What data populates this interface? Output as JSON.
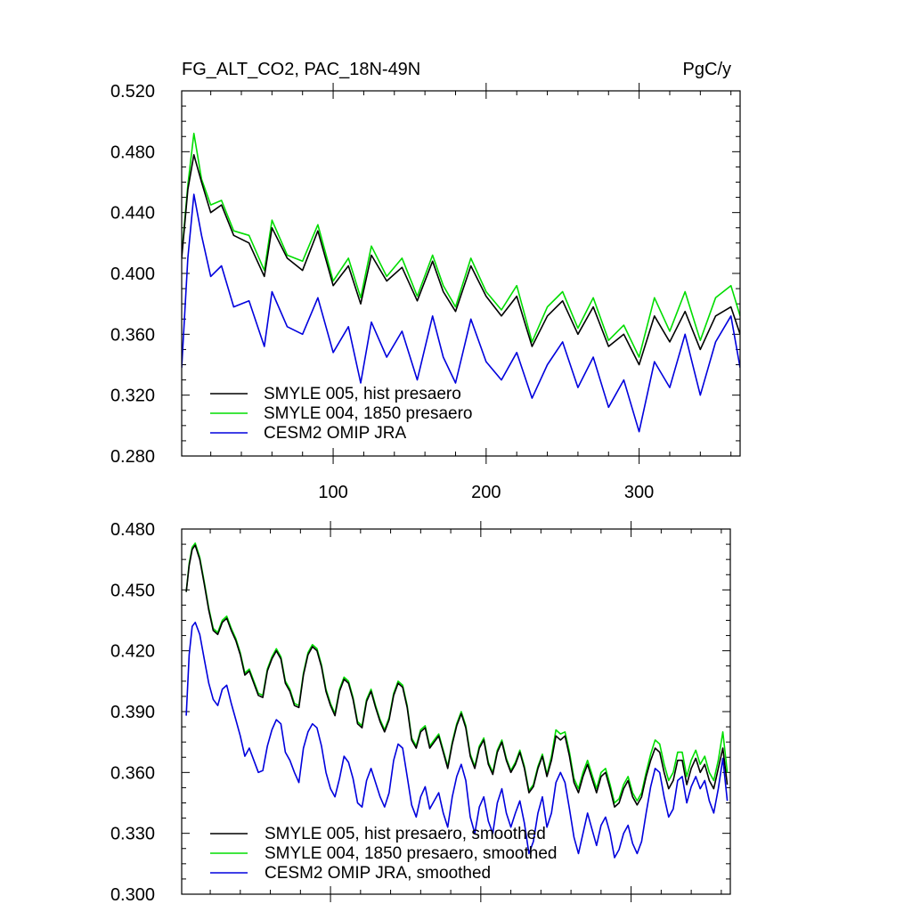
{
  "chart_data": [
    {
      "type": "line",
      "title_left": "FG_ALT_CO2, PAC_18N-49N",
      "title_right": "PgC/y",
      "xlim": [
        1,
        366
      ],
      "ylim": [
        0.28,
        0.52
      ],
      "x_ticks": [
        100,
        200,
        300
      ],
      "x_tick_labels": [
        "100",
        "200",
        "300"
      ],
      "y_ticks": [
        0.28,
        0.32,
        0.36,
        0.4,
        0.44,
        0.48,
        0.52
      ],
      "y_tick_labels": [
        "0.280",
        "0.320",
        "0.360",
        "0.400",
        "0.440",
        "0.480",
        "0.520"
      ],
      "legend": "bottom-left",
      "series": [
        {
          "name": "SMYLE 005, hist presaero",
          "color": "#000000",
          "x": [
            1,
            5,
            9,
            14,
            20,
            27,
            35,
            45,
            55,
            60,
            70,
            80,
            90,
            100,
            110,
            118,
            125,
            135,
            145,
            155,
            165,
            172,
            180,
            190,
            200,
            210,
            220,
            230,
            240,
            250,
            260,
            270,
            280,
            290,
            300,
            310,
            320,
            330,
            340,
            350,
            360,
            366
          ],
          "values": [
            0.41,
            0.455,
            0.478,
            0.46,
            0.44,
            0.445,
            0.425,
            0.42,
            0.398,
            0.43,
            0.41,
            0.402,
            0.428,
            0.392,
            0.405,
            0.38,
            0.412,
            0.395,
            0.404,
            0.382,
            0.408,
            0.388,
            0.375,
            0.405,
            0.385,
            0.372,
            0.385,
            0.352,
            0.372,
            0.382,
            0.36,
            0.378,
            0.352,
            0.36,
            0.34,
            0.372,
            0.355,
            0.375,
            0.35,
            0.372,
            0.378,
            0.36
          ]
        },
        {
          "name": "SMYLE 004, 1850 presaero",
          "color": "#00dd00",
          "x": [
            1,
            5,
            9,
            14,
            20,
            27,
            35,
            45,
            55,
            60,
            70,
            80,
            90,
            100,
            110,
            118,
            125,
            135,
            145,
            155,
            165,
            172,
            180,
            190,
            200,
            210,
            220,
            230,
            240,
            250,
            260,
            270,
            280,
            290,
            300,
            310,
            320,
            330,
            340,
            350,
            360,
            366
          ],
          "values": [
            0.412,
            0.458,
            0.492,
            0.462,
            0.445,
            0.448,
            0.428,
            0.425,
            0.402,
            0.435,
            0.412,
            0.408,
            0.432,
            0.395,
            0.41,
            0.384,
            0.418,
            0.398,
            0.41,
            0.385,
            0.412,
            0.392,
            0.378,
            0.41,
            0.388,
            0.376,
            0.392,
            0.355,
            0.378,
            0.388,
            0.364,
            0.384,
            0.356,
            0.366,
            0.345,
            0.384,
            0.362,
            0.388,
            0.356,
            0.384,
            0.392,
            0.372
          ]
        },
        {
          "name": "CESM2 OMIP JRA",
          "color": "#0000dd",
          "x": [
            1,
            5,
            9,
            14,
            20,
            27,
            35,
            45,
            55,
            60,
            70,
            80,
            90,
            100,
            110,
            118,
            125,
            135,
            145,
            155,
            165,
            172,
            180,
            190,
            200,
            210,
            220,
            230,
            240,
            250,
            260,
            270,
            280,
            290,
            300,
            310,
            320,
            330,
            340,
            350,
            360,
            366
          ],
          "values": [
            0.338,
            0.41,
            0.452,
            0.425,
            0.398,
            0.405,
            0.378,
            0.382,
            0.352,
            0.388,
            0.365,
            0.36,
            0.384,
            0.348,
            0.365,
            0.328,
            0.368,
            0.345,
            0.362,
            0.33,
            0.372,
            0.345,
            0.328,
            0.37,
            0.342,
            0.33,
            0.348,
            0.318,
            0.34,
            0.355,
            0.325,
            0.345,
            0.312,
            0.33,
            0.296,
            0.342,
            0.325,
            0.36,
            0.32,
            0.355,
            0.372,
            0.338
          ]
        }
      ]
    },
    {
      "type": "line",
      "xlim": [
        1,
        366
      ],
      "ylim": [
        0.3,
        0.48
      ],
      "x_ticks": [
        100,
        200,
        300
      ],
      "y_ticks": [
        0.3,
        0.33,
        0.36,
        0.39,
        0.42,
        0.45,
        0.48
      ],
      "y_tick_labels": [
        "0.300",
        "0.330",
        "0.360",
        "0.390",
        "0.420",
        "0.450",
        "0.480"
      ],
      "legend": "bottom-left",
      "series": [
        {
          "name": "SMYLE 005, hist presaero, smoothed",
          "color": "#000000",
          "x": [
            4,
            6,
            8,
            10,
            13,
            16,
            19,
            22,
            25,
            28,
            31,
            34,
            37,
            40,
            43,
            46,
            49,
            52,
            55,
            58,
            61,
            64,
            67,
            70,
            73,
            76,
            79,
            82,
            85,
            88,
            91,
            94,
            97,
            100,
            103,
            106,
            109,
            112,
            115,
            118,
            121,
            124,
            127,
            130,
            133,
            136,
            139,
            142,
            145,
            148,
            151,
            154,
            157,
            160,
            163,
            166,
            169,
            172,
            175,
            178,
            181,
            184,
            187,
            190,
            193,
            196,
            199,
            202,
            205,
            208,
            211,
            214,
            217,
            220,
            223,
            226,
            229,
            232,
            235,
            238,
            241,
            244,
            247,
            250,
            253,
            256,
            259,
            262,
            265,
            268,
            271,
            274,
            277,
            280,
            283,
            286,
            289,
            292,
            295,
            298,
            301,
            304,
            307,
            310,
            313,
            316,
            319,
            322,
            325,
            328,
            331,
            334,
            337,
            340,
            343,
            346,
            349,
            352,
            355,
            358,
            361,
            364
          ],
          "values": [
            0.449,
            0.462,
            0.47,
            0.472,
            0.465,
            0.453,
            0.44,
            0.43,
            0.428,
            0.434,
            0.436,
            0.43,
            0.425,
            0.418,
            0.408,
            0.41,
            0.404,
            0.398,
            0.397,
            0.41,
            0.416,
            0.42,
            0.416,
            0.404,
            0.4,
            0.393,
            0.392,
            0.408,
            0.418,
            0.422,
            0.42,
            0.412,
            0.4,
            0.393,
            0.388,
            0.4,
            0.406,
            0.404,
            0.396,
            0.384,
            0.382,
            0.395,
            0.4,
            0.392,
            0.385,
            0.38,
            0.386,
            0.398,
            0.404,
            0.402,
            0.392,
            0.376,
            0.372,
            0.38,
            0.382,
            0.372,
            0.375,
            0.378,
            0.37,
            0.362,
            0.374,
            0.383,
            0.389,
            0.382,
            0.368,
            0.362,
            0.372,
            0.376,
            0.364,
            0.359,
            0.37,
            0.375,
            0.366,
            0.36,
            0.364,
            0.37,
            0.362,
            0.35,
            0.353,
            0.362,
            0.368,
            0.358,
            0.366,
            0.378,
            0.376,
            0.378,
            0.368,
            0.355,
            0.35,
            0.358,
            0.364,
            0.357,
            0.35,
            0.358,
            0.36,
            0.352,
            0.343,
            0.345,
            0.352,
            0.356,
            0.348,
            0.344,
            0.348,
            0.358,
            0.366,
            0.372,
            0.37,
            0.36,
            0.352,
            0.356,
            0.366,
            0.366,
            0.354,
            0.362,
            0.367,
            0.36,
            0.364,
            0.356,
            0.352,
            0.362,
            0.372,
            0.354
          ]
        },
        {
          "name": "SMYLE 004, 1850 presaero, smoothed",
          "color": "#00dd00",
          "x": [
            4,
            6,
            8,
            10,
            13,
            16,
            19,
            22,
            25,
            28,
            31,
            34,
            37,
            40,
            43,
            46,
            49,
            52,
            55,
            58,
            61,
            64,
            67,
            70,
            73,
            76,
            79,
            82,
            85,
            88,
            91,
            94,
            97,
            100,
            103,
            106,
            109,
            112,
            115,
            118,
            121,
            124,
            127,
            130,
            133,
            136,
            139,
            142,
            145,
            148,
            151,
            154,
            157,
            160,
            163,
            166,
            169,
            172,
            175,
            178,
            181,
            184,
            187,
            190,
            193,
            196,
            199,
            202,
            205,
            208,
            211,
            214,
            217,
            220,
            223,
            226,
            229,
            232,
            235,
            238,
            241,
            244,
            247,
            250,
            253,
            256,
            259,
            262,
            265,
            268,
            271,
            274,
            277,
            280,
            283,
            286,
            289,
            292,
            295,
            298,
            301,
            304,
            307,
            310,
            313,
            316,
            319,
            322,
            325,
            328,
            331,
            334,
            337,
            340,
            343,
            346,
            349,
            352,
            355,
            358,
            361,
            364
          ],
          "values": [
            0.449,
            0.463,
            0.471,
            0.473,
            0.466,
            0.454,
            0.441,
            0.431,
            0.429,
            0.435,
            0.437,
            0.431,
            0.426,
            0.419,
            0.409,
            0.411,
            0.405,
            0.399,
            0.398,
            0.411,
            0.417,
            0.421,
            0.417,
            0.405,
            0.401,
            0.394,
            0.393,
            0.409,
            0.419,
            0.423,
            0.421,
            0.413,
            0.401,
            0.394,
            0.389,
            0.401,
            0.407,
            0.405,
            0.397,
            0.385,
            0.383,
            0.396,
            0.401,
            0.393,
            0.386,
            0.381,
            0.387,
            0.399,
            0.405,
            0.403,
            0.393,
            0.377,
            0.373,
            0.381,
            0.383,
            0.373,
            0.376,
            0.379,
            0.371,
            0.363,
            0.375,
            0.384,
            0.39,
            0.383,
            0.369,
            0.363,
            0.373,
            0.377,
            0.365,
            0.36,
            0.371,
            0.376,
            0.367,
            0.361,
            0.365,
            0.371,
            0.363,
            0.351,
            0.354,
            0.363,
            0.369,
            0.359,
            0.368,
            0.381,
            0.379,
            0.38,
            0.37,
            0.357,
            0.352,
            0.36,
            0.366,
            0.359,
            0.352,
            0.36,
            0.362,
            0.354,
            0.345,
            0.347,
            0.354,
            0.358,
            0.35,
            0.346,
            0.35,
            0.36,
            0.369,
            0.376,
            0.374,
            0.364,
            0.356,
            0.36,
            0.37,
            0.37,
            0.358,
            0.366,
            0.371,
            0.364,
            0.368,
            0.36,
            0.356,
            0.366,
            0.38,
            0.36
          ]
        },
        {
          "name": "CESM2 OMIP JRA, smoothed",
          "color": "#0000dd",
          "x": [
            4,
            6,
            8,
            10,
            13,
            16,
            19,
            22,
            25,
            28,
            31,
            34,
            37,
            40,
            43,
            46,
            49,
            52,
            55,
            58,
            61,
            64,
            67,
            70,
            73,
            76,
            79,
            82,
            85,
            88,
            91,
            94,
            97,
            100,
            103,
            106,
            109,
            112,
            115,
            118,
            121,
            124,
            127,
            130,
            133,
            136,
            139,
            142,
            145,
            148,
            151,
            154,
            157,
            160,
            163,
            166,
            169,
            172,
            175,
            178,
            181,
            184,
            187,
            190,
            193,
            196,
            199,
            202,
            205,
            208,
            211,
            214,
            217,
            220,
            223,
            226,
            229,
            232,
            235,
            238,
            241,
            244,
            247,
            250,
            253,
            256,
            259,
            262,
            265,
            268,
            271,
            274,
            277,
            280,
            283,
            286,
            289,
            292,
            295,
            298,
            301,
            304,
            307,
            310,
            313,
            316,
            319,
            322,
            325,
            328,
            331,
            334,
            337,
            340,
            343,
            346,
            349,
            352,
            355,
            358,
            361,
            364
          ],
          "values": [
            0.388,
            0.418,
            0.432,
            0.434,
            0.428,
            0.416,
            0.404,
            0.396,
            0.393,
            0.401,
            0.403,
            0.394,
            0.386,
            0.378,
            0.368,
            0.372,
            0.366,
            0.36,
            0.361,
            0.373,
            0.381,
            0.386,
            0.384,
            0.37,
            0.366,
            0.36,
            0.355,
            0.372,
            0.38,
            0.384,
            0.382,
            0.373,
            0.36,
            0.352,
            0.348,
            0.357,
            0.368,
            0.365,
            0.357,
            0.345,
            0.343,
            0.356,
            0.362,
            0.355,
            0.348,
            0.343,
            0.35,
            0.366,
            0.374,
            0.372,
            0.358,
            0.344,
            0.338,
            0.348,
            0.353,
            0.342,
            0.346,
            0.35,
            0.34,
            0.333,
            0.348,
            0.358,
            0.364,
            0.356,
            0.338,
            0.33,
            0.343,
            0.348,
            0.336,
            0.33,
            0.345,
            0.352,
            0.34,
            0.333,
            0.34,
            0.346,
            0.335,
            0.32,
            0.326,
            0.34,
            0.348,
            0.333,
            0.34,
            0.355,
            0.36,
            0.355,
            0.342,
            0.328,
            0.32,
            0.33,
            0.34,
            0.332,
            0.324,
            0.334,
            0.338,
            0.33,
            0.318,
            0.322,
            0.33,
            0.334,
            0.325,
            0.32,
            0.326,
            0.34,
            0.353,
            0.362,
            0.36,
            0.348,
            0.338,
            0.342,
            0.356,
            0.358,
            0.345,
            0.353,
            0.358,
            0.352,
            0.356,
            0.346,
            0.34,
            0.352,
            0.367,
            0.346
          ]
        }
      ]
    }
  ]
}
